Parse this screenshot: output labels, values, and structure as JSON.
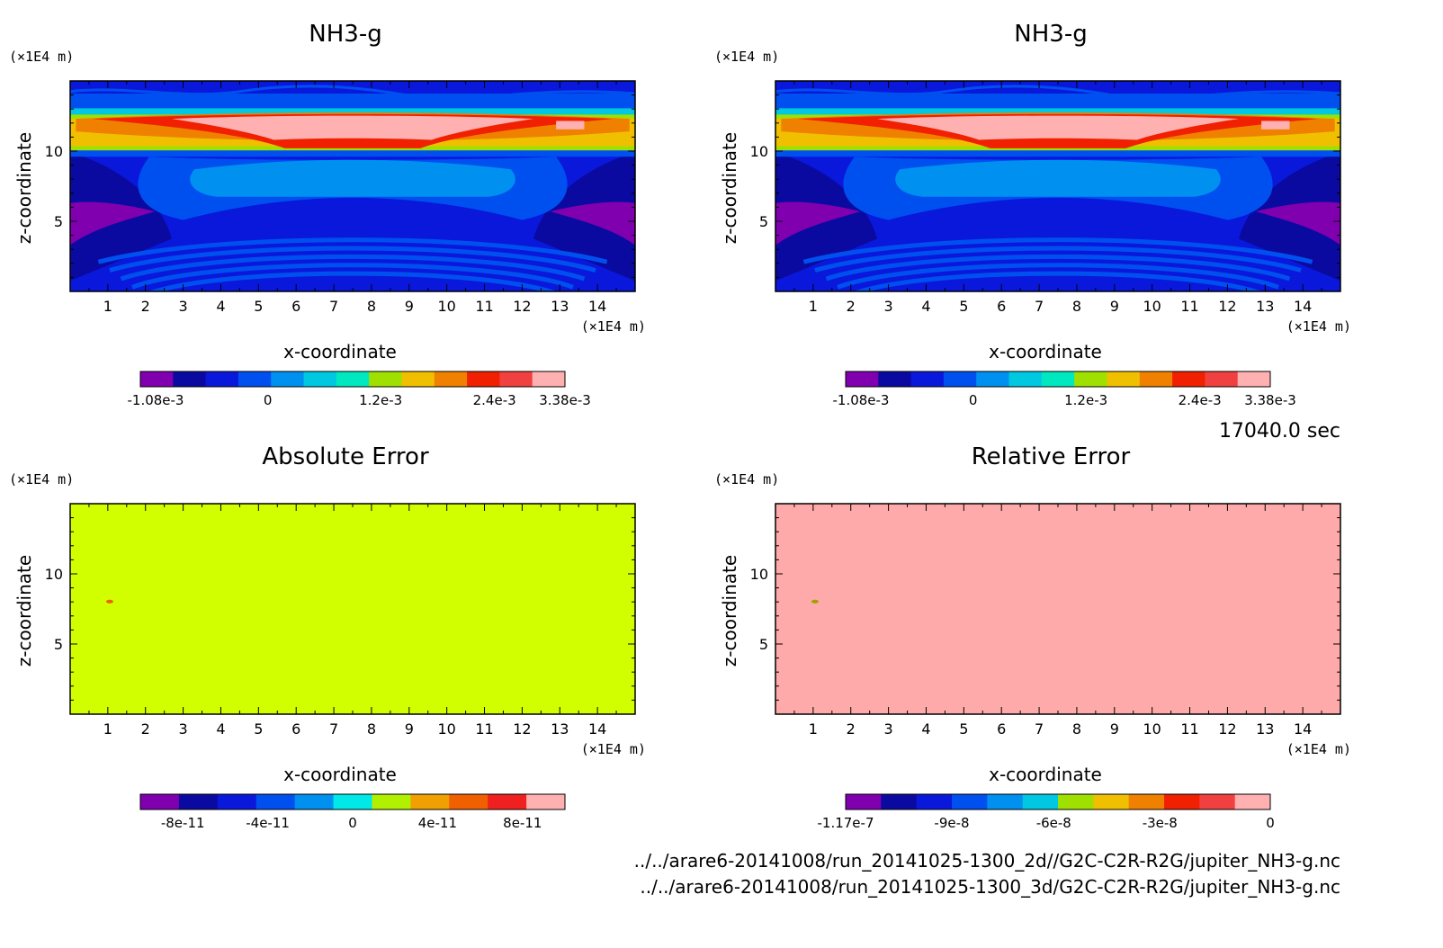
{
  "chart_data": [
    {
      "type": "heatmap",
      "title": "NH3-g",
      "xlabel": "x-coordinate",
      "ylabel": "z-coordinate",
      "x_unit": "(×1E4 m)",
      "y_unit": "(×1E4 m)",
      "x_ticks": [
        "1",
        "2",
        "3",
        "4",
        "5",
        "6",
        "7",
        "8",
        "9",
        "10",
        "11",
        "12",
        "13",
        "14"
      ],
      "y_ticks": [
        "5",
        "10"
      ],
      "xlim": [
        0,
        15
      ],
      "ylim": [
        0,
        15
      ],
      "field": "contour",
      "colorbar": {
        "colors": [
          "#8000b0",
          "#0a0aa0",
          "#0a18dc",
          "#0050f0",
          "#0090f0",
          "#00c8e0",
          "#00e8c0",
          "#a0e000",
          "#f0c000",
          "#f08000",
          "#f02000",
          "#f04040",
          "#ffb0b0"
        ],
        "tick_labels": [
          "-1.08e-3",
          "0",
          "1.2e-3",
          "2.4e-3",
          "3.38e-3"
        ]
      }
    },
    {
      "type": "heatmap",
      "title": "NH3-g",
      "xlabel": "x-coordinate",
      "ylabel": "z-coordinate",
      "x_unit": "(×1E4 m)",
      "y_unit": "(×1E4 m)",
      "x_ticks": [
        "1",
        "2",
        "3",
        "4",
        "5",
        "6",
        "7",
        "8",
        "9",
        "10",
        "11",
        "12",
        "13",
        "14"
      ],
      "y_ticks": [
        "5",
        "10"
      ],
      "xlim": [
        0,
        15
      ],
      "ylim": [
        0,
        15
      ],
      "field": "contour",
      "colorbar": {
        "colors": [
          "#8000b0",
          "#0a0aa0",
          "#0a18dc",
          "#0050f0",
          "#0090f0",
          "#00c8e0",
          "#00e8c0",
          "#a0e000",
          "#f0c000",
          "#f08000",
          "#f02000",
          "#f04040",
          "#ffb0b0"
        ],
        "tick_labels": [
          "-1.08e-3",
          "0",
          "1.2e-3",
          "2.4e-3",
          "3.38e-3"
        ]
      }
    },
    {
      "type": "heatmap",
      "title": "Absolute Error",
      "xlabel": "x-coordinate",
      "ylabel": "z-coordinate",
      "x_unit": "(×1E4 m)",
      "y_unit": "(×1E4 m)",
      "x_ticks": [
        "1",
        "2",
        "3",
        "4",
        "5",
        "6",
        "7",
        "8",
        "9",
        "10",
        "11",
        "12",
        "13",
        "14"
      ],
      "y_ticks": [
        "5",
        "10"
      ],
      "xlim": [
        0,
        15
      ],
      "ylim": [
        0,
        15
      ],
      "field": "uniform",
      "fill_color": "#d2ff00",
      "colorbar": {
        "colors": [
          "#8000b0",
          "#0a0aa0",
          "#0a18dc",
          "#0050f0",
          "#0090f0",
          "#00e8e8",
          "#b0f000",
          "#f0a000",
          "#f06000",
          "#f02020",
          "#ffb0b0"
        ],
        "tick_labels": [
          "-8e-11",
          "-4e-11",
          "0",
          "4e-11",
          "8e-11"
        ]
      }
    },
    {
      "type": "heatmap",
      "title": "Relative Error",
      "xlabel": "x-coordinate",
      "ylabel": "z-coordinate",
      "x_unit": "(×1E4 m)",
      "y_unit": "(×1E4 m)",
      "x_ticks": [
        "1",
        "2",
        "3",
        "4",
        "5",
        "6",
        "7",
        "8",
        "9",
        "10",
        "11",
        "12",
        "13",
        "14"
      ],
      "y_ticks": [
        "5",
        "10"
      ],
      "xlim": [
        0,
        15
      ],
      "ylim": [
        0,
        15
      ],
      "field": "uniform",
      "fill_color": "#ffaaaa",
      "colorbar": {
        "colors": [
          "#8000b0",
          "#0a0aa0",
          "#0a18dc",
          "#0050f0",
          "#0090f0",
          "#00c8e0",
          "#a0e000",
          "#f0c000",
          "#f08000",
          "#f02000",
          "#f04040",
          "#ffb0b0"
        ],
        "tick_labels": [
          "-1.17e-7",
          "-9e-8",
          "-6e-8",
          "-3e-8",
          "0"
        ]
      }
    }
  ],
  "time_label": "17040.0 sec",
  "file_paths": [
    "../../arare6-20141008/run_20141025-1300_2d//G2C-C2R-R2G/jupiter_NH3-g.nc",
    "../../arare6-20141008/run_20141025-1300_3d/G2C-C2R-R2G/jupiter_NH3-g.nc"
  ]
}
